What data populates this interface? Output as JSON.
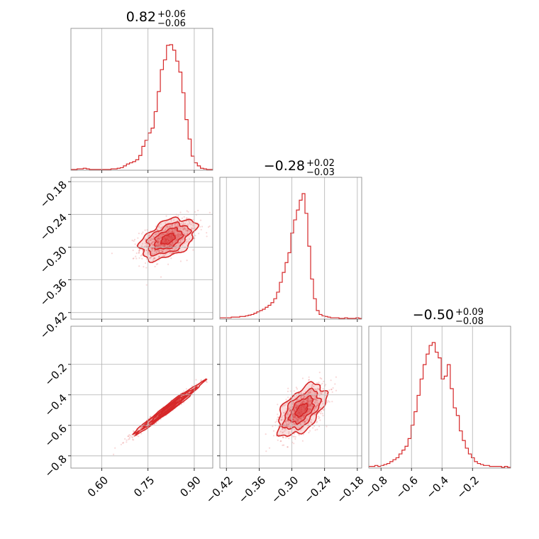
{
  "chart_data": {
    "type": "corner",
    "color": "#d62728",
    "grid": true,
    "variables": [
      {
        "range": [
          0.5,
          0.96
        ],
        "ticks": [
          0.6,
          0.75,
          0.9
        ],
        "tick_labels": [
          "0.60",
          "0.75",
          "0.90"
        ]
      },
      {
        "range": [
          -0.432,
          -0.172
        ],
        "ticks": [
          -0.42,
          -0.36,
          -0.3,
          -0.24,
          -0.18
        ],
        "tick_labels": [
          "−0.42",
          "−0.36",
          "−0.30",
          "−0.24",
          "−0.18"
        ]
      },
      {
        "range": [
          -0.88,
          0.05
        ],
        "ticks": [
          -0.8,
          -0.6,
          -0.4,
          -0.2
        ],
        "tick_labels": [
          "−0.8",
          "−0.6",
          "−0.4",
          "−0.2"
        ]
      }
    ],
    "titles": [
      {
        "median": "0.82",
        "plus": "+0.06",
        "minus": "−0.06"
      },
      {
        "median": "−0.28",
        "plus": "+0.02",
        "minus": "−0.03"
      },
      {
        "median": "−0.50",
        "plus": "+0.09",
        "minus": "−0.08"
      }
    ],
    "histograms": [
      {
        "variable": 0,
        "bin_edges": [
          0.5,
          0.96
        ],
        "counts": [
          0,
          0,
          1,
          1,
          2,
          1,
          0,
          0,
          0,
          0,
          0,
          0,
          0,
          1,
          1,
          2,
          3,
          6,
          9,
          11,
          13,
          16,
          23,
          38,
          48,
          60,
          68,
          95,
          128,
          164,
          180,
          204,
          205,
          196,
          178,
          160,
          126,
          82,
          50,
          22,
          11,
          6,
          2,
          1,
          0,
          0
        ]
      },
      {
        "variable": 1,
        "bin_edges": [
          -0.432,
          -0.172
        ],
        "counts": [
          1,
          1,
          1,
          1,
          2,
          2,
          2,
          3,
          3,
          4,
          5,
          6,
          8,
          10,
          12,
          14,
          17,
          20,
          24,
          30,
          40,
          55,
          70,
          85,
          100,
          130,
          150,
          165,
          180,
          190,
          160,
          110,
          60,
          30,
          12,
          6,
          4,
          3,
          2,
          1,
          1,
          1,
          0,
          0,
          1,
          0,
          0,
          0,
          1,
          0
        ]
      },
      {
        "variable": 2,
        "bin_edges": [
          -0.88,
          0.05
        ],
        "counts": [
          1,
          1,
          2,
          1,
          2,
          3,
          4,
          6,
          8,
          10,
          14,
          18,
          22,
          30,
          44,
          58,
          75,
          92,
          107,
          118,
          127,
          130,
          120,
          114,
          92,
          95,
          107,
          82,
          62,
          54,
          38,
          28,
          20,
          14,
          10,
          6,
          4,
          3,
          2,
          2,
          1,
          1,
          1,
          1,
          0,
          1,
          0
        ]
      }
    ],
    "pairs": [
      {
        "x_var": 0,
        "y_var": 1,
        "center": [
          0.815,
          -0.285
        ],
        "sd": [
          0.045,
          0.019
        ],
        "rho": 0.45,
        "n_points": 750
      },
      {
        "x_var": 0,
        "y_var": 2,
        "center": [
          0.815,
          -0.49
        ],
        "sd": [
          0.055,
          0.085
        ],
        "rho": 0.985,
        "n_points": 700
      },
      {
        "x_var": 1,
        "y_var": 2,
        "center": [
          -0.282,
          -0.5
        ],
        "sd": [
          0.022,
          0.085
        ],
        "rho": 0.55,
        "n_points": 750
      }
    ]
  }
}
